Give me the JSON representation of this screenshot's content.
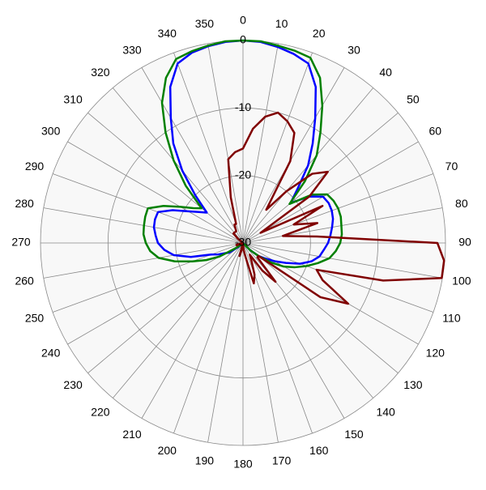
{
  "chart_data": {
    "type": "polar",
    "grid": true,
    "xlim": [
      0,
      360
    ],
    "xticks": [
      0,
      10,
      20,
      30,
      40,
      50,
      60,
      70,
      80,
      90,
      100,
      110,
      120,
      130,
      140,
      150,
      160,
      170,
      180,
      190,
      200,
      210,
      220,
      230,
      240,
      250,
      260,
      270,
      280,
      290,
      300,
      310,
      320,
      330,
      340,
      350
    ],
    "ylim": [
      -30,
      0
    ],
    "yticks": [
      -30,
      -20,
      -10,
      0
    ],
    "x": [
      0,
      5,
      10,
      15,
      20,
      25,
      30,
      35,
      40,
      45,
      50,
      55,
      60,
      65,
      70,
      75,
      80,
      85,
      90,
      95,
      100,
      105,
      110,
      115,
      120,
      125,
      130,
      135,
      140,
      145,
      150,
      155,
      160,
      165,
      170,
      175,
      180,
      185,
      190,
      195,
      200,
      205,
      210,
      215,
      220,
      225,
      230,
      235,
      240,
      245,
      250,
      255,
      260,
      265,
      270,
      275,
      280,
      285,
      290,
      295,
      300,
      305,
      310,
      315,
      320,
      325,
      330,
      335,
      340,
      345,
      350,
      355
    ],
    "series": [
      {
        "color": "#0000ff",
        "values": [
          0,
          -0.1,
          -0.5,
          -1,
          -1.7,
          -4.5,
          -8.6,
          -12,
          -15,
          -18.5,
          -20.8,
          -18,
          -16.3,
          -16,
          -16,
          -16.2,
          -16.6,
          -17,
          -17.4,
          -18,
          -18.5,
          -19.5,
          -21,
          -23,
          -24.6,
          -26,
          -27,
          -28.5,
          -30,
          -30,
          -30,
          -30,
          -30,
          -30,
          -30,
          -30,
          -30,
          -30,
          -30,
          -30,
          -30,
          -30,
          -30,
          -30,
          -30,
          -30,
          -29,
          -27.5,
          -27,
          -26,
          -25,
          -22,
          -19.6,
          -18.3,
          -17.4,
          -17,
          -16.6,
          -16.5,
          -16.6,
          -18.5,
          -20.6,
          -22,
          -23,
          -20,
          -16,
          -12,
          -8.6,
          -4.5,
          -1.7,
          -0.8,
          -0.4,
          -0.1
        ]
      },
      {
        "color": "#008000",
        "values": [
          0,
          0,
          -0.3,
          -0.5,
          -0.8,
          -3,
          -6.5,
          -10,
          -13,
          -17,
          -21,
          -17.5,
          -15.6,
          -15.2,
          -15,
          -15,
          -15.2,
          -15.3,
          -15.6,
          -16.2,
          -17,
          -18.5,
          -20,
          -21.5,
          -23,
          -25,
          -27,
          -28.5,
          -30,
          -30,
          -30,
          -30,
          -30,
          -30,
          -30,
          -30,
          -30,
          -30,
          -30,
          -30,
          -30,
          -30,
          -30,
          -30,
          -30,
          -30,
          -29.5,
          -28.5,
          -26,
          -24,
          -22,
          -19.5,
          -17.3,
          -16.2,
          -15.6,
          -15.2,
          -15.1,
          -15,
          -15,
          -17,
          -19.3,
          -21,
          -22,
          -18,
          -14,
          -10,
          -6,
          -3,
          -1,
          -0.6,
          -0.3,
          0
        ]
      },
      {
        "color": "#800000",
        "values": [
          -16,
          -13,
          -11,
          -10,
          -10.8,
          -12,
          -16,
          -24,
          -20,
          -15.5,
          -13.6,
          -18,
          -27,
          -17,
          -22,
          -18.6,
          -24,
          -19,
          -1.2,
          -0.1,
          -0.1,
          -8.5,
          -18.4,
          -17,
          -12,
          -16,
          -27,
          -27,
          -22.5,
          -25,
          -28,
          -27,
          -25,
          -23.8,
          -28,
          -29,
          -30,
          -30,
          -29,
          -28,
          -30,
          -30,
          -30,
          -30,
          -30,
          -30,
          -30,
          -30,
          -30,
          -30,
          -29,
          -29,
          -30,
          -30,
          -30,
          -30,
          -30,
          -30,
          -30,
          -30,
          -30,
          -30,
          -29,
          -28,
          -28,
          -28,
          -28,
          -27,
          -27,
          -23,
          -17.4,
          -16.5
        ]
      }
    ]
  }
}
